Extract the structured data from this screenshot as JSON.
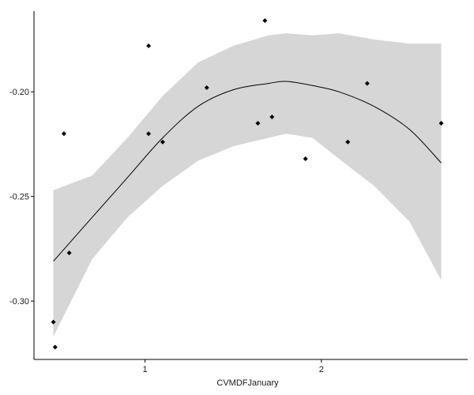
{
  "chart_data": {
    "type": "scatter",
    "title": "",
    "xlabel": "CVMDFJanuary",
    "ylabel": "",
    "xlim": [
      0.37,
      2.83
    ],
    "ylim": [
      -0.3279,
      -0.1614
    ],
    "x_ticks": [
      {
        "value": 1,
        "label": "1"
      },
      {
        "value": 2,
        "label": "2"
      }
    ],
    "y_ticks": [
      {
        "value": -0.3,
        "label": "-0.30"
      },
      {
        "value": -0.25,
        "label": "-0.25"
      },
      {
        "value": -0.2,
        "label": "-0.20"
      }
    ],
    "grid": false,
    "legend": "none",
    "colors": {
      "points": "#000000",
      "fit_line": "#000000",
      "band_fill": "#d6d6d6",
      "axis": "#000000"
    },
    "points": [
      {
        "x": 0.48,
        "y": -0.31
      },
      {
        "x": 0.49,
        "y": -0.322
      },
      {
        "x": 0.54,
        "y": -0.22
      },
      {
        "x": 0.57,
        "y": -0.277
      },
      {
        "x": 1.02,
        "y": -0.178
      },
      {
        "x": 1.02,
        "y": -0.22
      },
      {
        "x": 1.1,
        "y": -0.224
      },
      {
        "x": 1.35,
        "y": -0.198
      },
      {
        "x": 1.64,
        "y": -0.215
      },
      {
        "x": 1.68,
        "y": -0.166
      },
      {
        "x": 1.72,
        "y": -0.212
      },
      {
        "x": 1.91,
        "y": -0.232
      },
      {
        "x": 2.15,
        "y": -0.224
      },
      {
        "x": 2.26,
        "y": -0.196
      },
      {
        "x": 2.68,
        "y": -0.215
      }
    ],
    "smooth": {
      "x": [
        0.48,
        0.7,
        0.9,
        1.1,
        1.3,
        1.5,
        1.7,
        1.8,
        1.95,
        2.1,
        2.3,
        2.5,
        2.68
      ],
      "y": [
        -0.281,
        -0.26,
        -0.241,
        -0.222,
        -0.207,
        -0.199,
        -0.196,
        -0.195,
        -0.197,
        -0.2,
        -0.207,
        -0.218,
        -0.234
      ],
      "lower": [
        -0.317,
        -0.28,
        -0.26,
        -0.245,
        -0.233,
        -0.226,
        -0.222,
        -0.22,
        -0.222,
        -0.232,
        -0.245,
        -0.262,
        -0.29
      ],
      "upper": [
        -0.247,
        -0.24,
        -0.222,
        -0.202,
        -0.186,
        -0.178,
        -0.173,
        -0.172,
        -0.173,
        -0.172,
        -0.175,
        -0.177,
        -0.177
      ]
    }
  }
}
